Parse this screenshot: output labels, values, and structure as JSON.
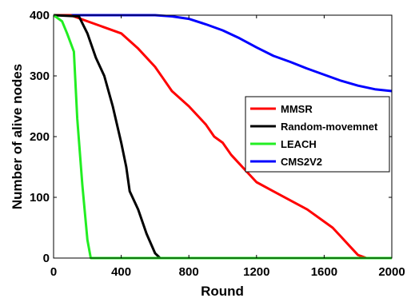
{
  "chart_data": {
    "type": "line",
    "title": "",
    "xlabel": "Round",
    "ylabel": "Number of alive nodes",
    "xlim": [
      0,
      2000
    ],
    "ylim": [
      0,
      400
    ],
    "xticks": [
      0,
      400,
      800,
      1200,
      1600,
      2000
    ],
    "yticks": [
      0,
      100,
      200,
      300,
      400
    ],
    "grid": false,
    "legend_position": "right-middle",
    "series": [
      {
        "name": "MMSR",
        "color": "#ff0000",
        "x": [
          0,
          100,
          200,
          300,
          400,
          500,
          600,
          650,
          700,
          800,
          900,
          950,
          1000,
          1050,
          1100,
          1150,
          1200,
          1300,
          1400,
          1500,
          1600,
          1650,
          1700,
          1750,
          1800,
          1850,
          2000
        ],
        "y": [
          400,
          400,
          390,
          380,
          370,
          345,
          315,
          295,
          275,
          250,
          220,
          200,
          190,
          170,
          155,
          140,
          125,
          110,
          95,
          80,
          60,
          50,
          35,
          20,
          5,
          0,
          0
        ]
      },
      {
        "name": "Random-movemnet",
        "color": "#000000",
        "x": [
          0,
          150,
          200,
          250,
          300,
          350,
          400,
          430,
          450,
          500,
          550,
          600,
          630,
          2000
        ],
        "y": [
          400,
          398,
          370,
          330,
          300,
          250,
          190,
          150,
          110,
          80,
          40,
          8,
          0,
          0
        ]
      },
      {
        "name": "LEACH",
        "color": "#22ee22",
        "x": [
          0,
          50,
          80,
          120,
          140,
          170,
          200,
          220,
          2000
        ],
        "y": [
          400,
          390,
          370,
          340,
          230,
          120,
          30,
          0,
          0
        ]
      },
      {
        "name": "CMS2V2",
        "color": "#0000ff",
        "x": [
          0,
          300,
          500,
          600,
          700,
          800,
          900,
          1000,
          1100,
          1200,
          1300,
          1400,
          1500,
          1600,
          1700,
          1800,
          1900,
          2000
        ],
        "y": [
          400,
          400,
          400,
          400,
          398,
          394,
          385,
          375,
          362,
          347,
          333,
          323,
          312,
          302,
          292,
          284,
          278,
          275
        ]
      }
    ]
  }
}
